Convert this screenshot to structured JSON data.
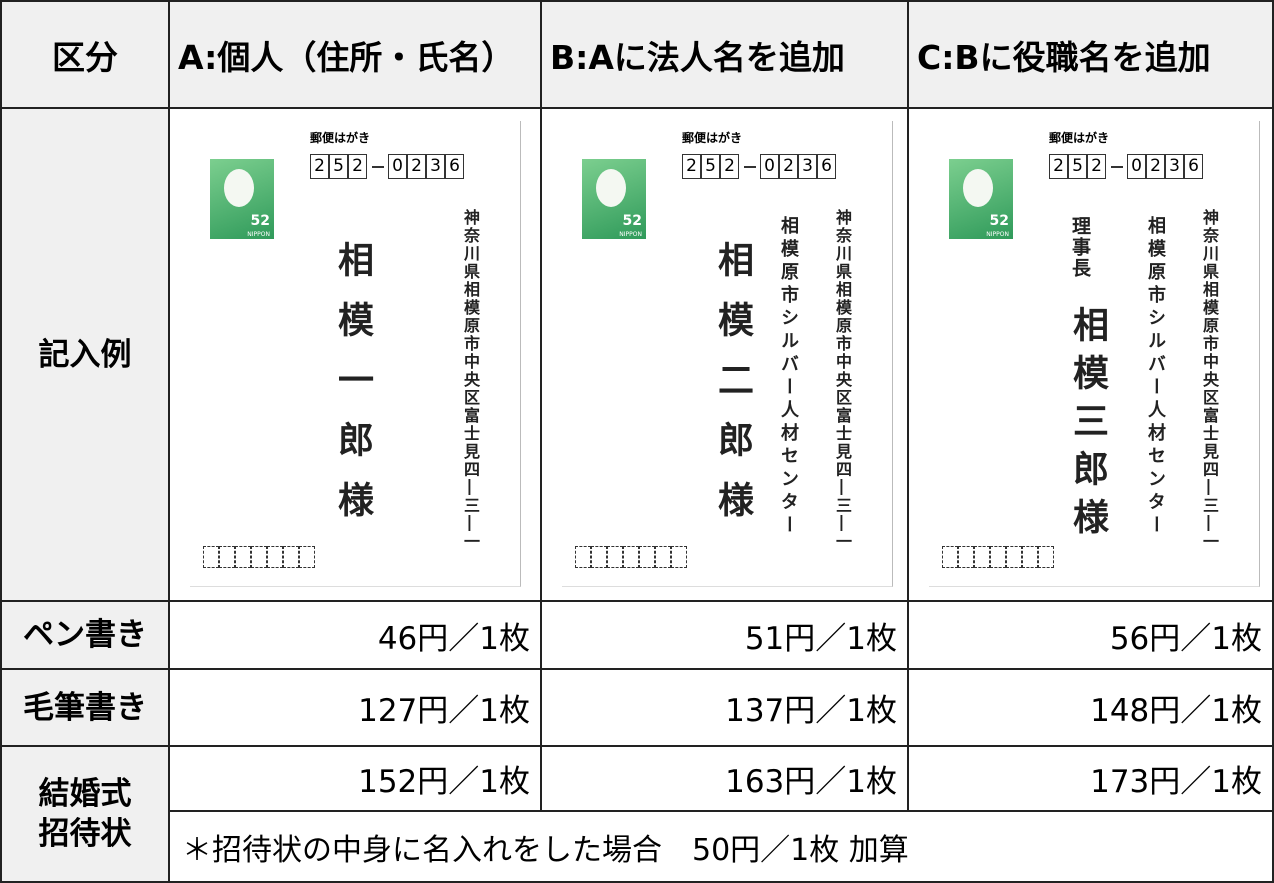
{
  "table": {
    "header": [
      "区分",
      "A:個人（住所・氏名）",
      "B:Aに法人名を追加",
      "C:Bに役職名を追加"
    ],
    "example_label": "記入例",
    "cards": [
      {
        "post_header": "郵便はがき",
        "postal_first": "252",
        "postal_last": "0236",
        "stamp_value": "52",
        "stamp_country": "NIPPON",
        "address": "神奈川県相模原市中央区富士見四―三―一",
        "name": "相模一郎様"
      },
      {
        "post_header": "郵便はがき",
        "postal_first": "252",
        "postal_last": "0236",
        "stamp_value": "52",
        "stamp_country": "NIPPON",
        "address": "神奈川県相模原市中央区富士見四―三―一",
        "company": "相模原市シルバー人材センター",
        "name": "相模二郎様"
      },
      {
        "post_header": "郵便はがき",
        "postal_first": "252",
        "postal_last": "0236",
        "stamp_value": "52",
        "stamp_country": "NIPPON",
        "address": "神奈川県相模原市中央区富士見四―三―一",
        "company": "相模原市シルバー人材センター",
        "title": "理事長",
        "name": "相模三郎様"
      }
    ],
    "rows": [
      {
        "label": "ペン書き",
        "prices": [
          "46円／1枚",
          "51円／1枚",
          "56円／1枚"
        ]
      },
      {
        "label": "毛筆書き",
        "prices": [
          "127円／1枚",
          "137円／1枚",
          "148円／1枚"
        ]
      },
      {
        "label": "結婚式\n招待状",
        "prices": [
          "152円／1枚",
          "163円／1枚",
          "173円／1枚"
        ]
      }
    ],
    "note": "＊招待状の中身に名入れをした場合　50円／1枚 加算"
  }
}
